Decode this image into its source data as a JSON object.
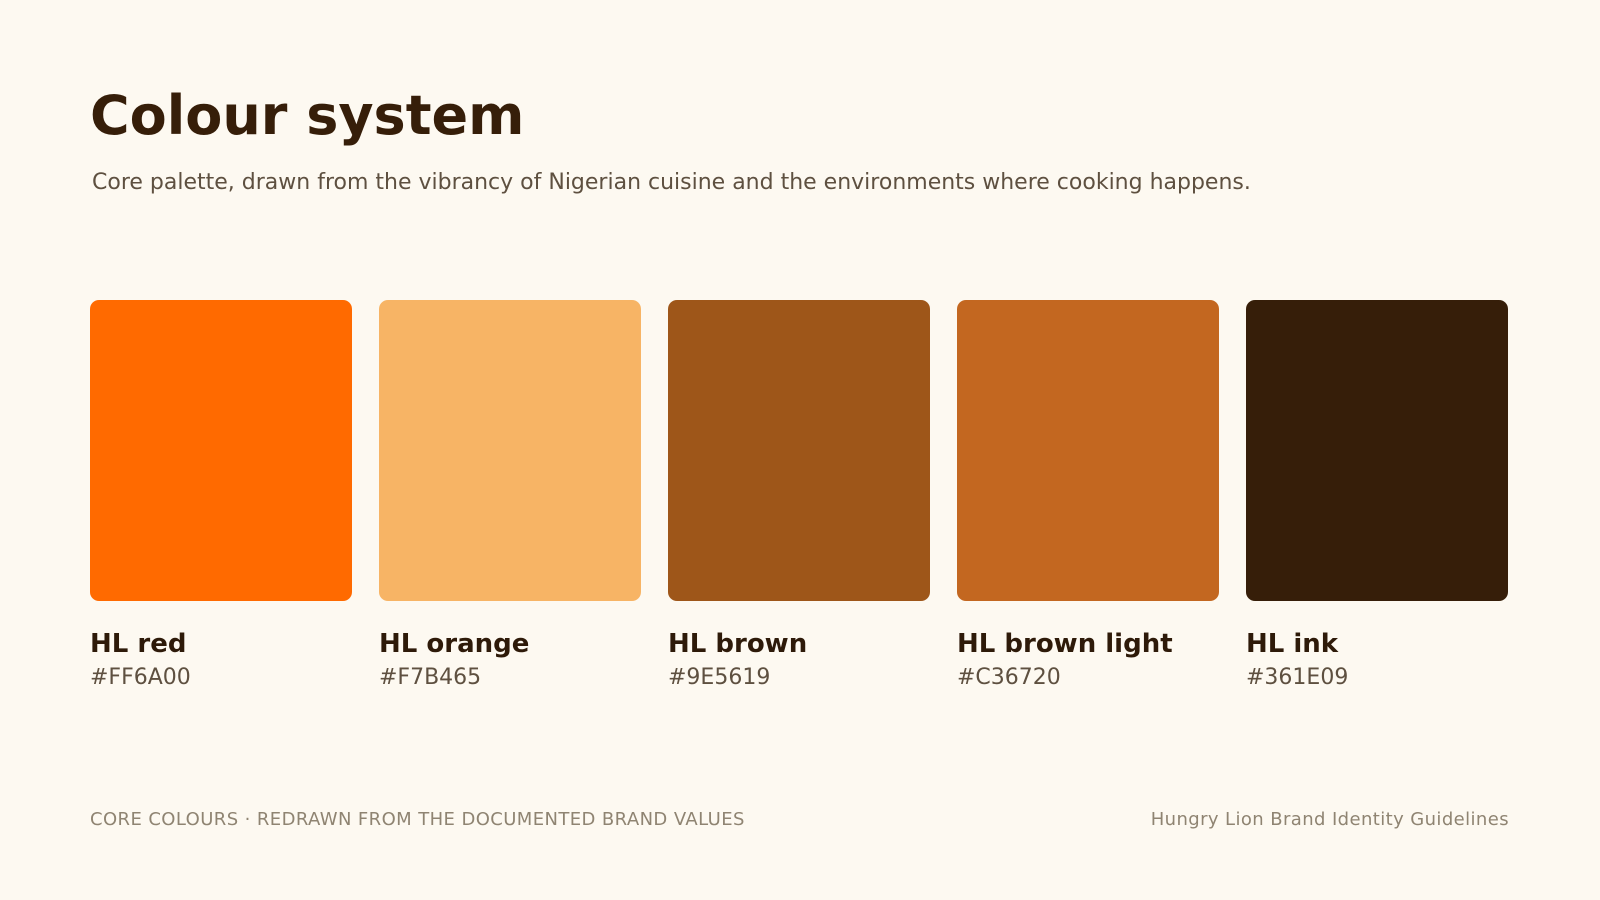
{
  "header": {
    "title": "Colour system",
    "subtitle": "Core palette, drawn from the vibrancy of Nigerian cuisine and the environments where cooking happens."
  },
  "swatches": [
    {
      "name": "HL red",
      "hex": "#FF6A00",
      "color": "#FF6A00"
    },
    {
      "name": "HL orange",
      "hex": "#F7B465",
      "color": "#F7B465"
    },
    {
      "name": "HL brown",
      "hex": "#9E5619",
      "color": "#9E5619"
    },
    {
      "name": "HL brown light",
      "hex": "#C36720",
      "color": "#C36720"
    },
    {
      "name": "HL ink",
      "hex": "#361E09",
      "color": "#361E09"
    }
  ],
  "footer": {
    "left": "CORE COLOURS · REDRAWN FROM THE DOCUMENTED BRAND VALUES",
    "right": "Hungry Lion Brand Identity Guidelines"
  },
  "colors": {
    "background": "#FDF9F1",
    "title": "#361E09",
    "body_text": "#5E5040",
    "footer_text": "#8F8472"
  }
}
